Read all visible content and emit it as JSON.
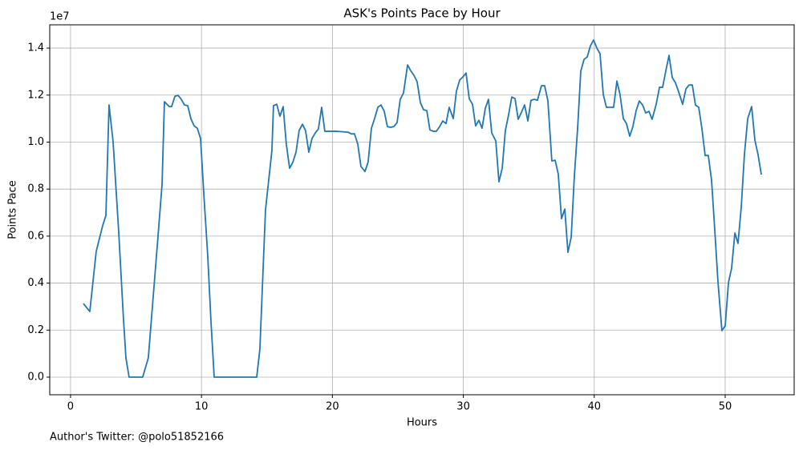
{
  "chart_data": {
    "type": "line",
    "title": "ASK's Points Pace by Hour",
    "x_label": "Hours",
    "y_label": "Points Pace",
    "y_offset_label": "1e7",
    "footnote": "Author's Twitter: @polo51852166",
    "grid": true,
    "color": "#1f77b4",
    "xlim": [
      -1.59,
      55.27
    ],
    "ylim": [
      -750000,
      14990000
    ],
    "xticks": [
      0,
      10,
      20,
      30,
      40,
      50
    ],
    "yticks": [
      {
        "value": 0,
        "label": "0.0"
      },
      {
        "value": 2000000,
        "label": "0.2"
      },
      {
        "value": 4000000,
        "label": "0.4"
      },
      {
        "value": 6000000,
        "label": "0.6"
      },
      {
        "value": 8000000,
        "label": "0.8"
      },
      {
        "value": 10000000,
        "label": "1.0"
      },
      {
        "value": 12000000,
        "label": "1.2"
      },
      {
        "value": 14000000,
        "label": "1.4"
      }
    ],
    "x": [
      0.98,
      1.47,
      1.96,
      2.45,
      2.7,
      2.82,
      2.94,
      3.25,
      3.68,
      4.04,
      4.23,
      4.47,
      5.51,
      5.94,
      6.68,
      6.99,
      7.17,
      7.54,
      7.72,
      7.97,
      8.21,
      8.46,
      8.7,
      8.95,
      9.19,
      9.44,
      9.68,
      9.93,
      10.17,
      10.48,
      10.72,
      10.97,
      14.22,
      14.46,
      14.89,
      15.38,
      15.5,
      15.75,
      15.99,
      16.24,
      16.48,
      16.73,
      16.97,
      17.22,
      17.46,
      17.71,
      17.95,
      18.2,
      18.44,
      18.69,
      18.93,
      19.18,
      19.42,
      20.34,
      21.2,
      21.45,
      21.69,
      21.94,
      22.18,
      22.49,
      22.73,
      22.98,
      23.22,
      23.47,
      23.71,
      23.96,
      24.2,
      24.45,
      24.69,
      24.94,
      25.18,
      25.43,
      25.74,
      25.98,
      26.23,
      26.47,
      26.72,
      26.96,
      27.21,
      27.45,
      27.7,
      27.94,
      28.19,
      28.43,
      28.68,
      28.92,
      29.23,
      29.47,
      29.72,
      29.96,
      30.21,
      30.45,
      30.7,
      30.94,
      31.19,
      31.43,
      31.68,
      31.92,
      32.17,
      32.48,
      32.72,
      32.97,
      33.21,
      33.46,
      33.7,
      33.95,
      34.19,
      34.44,
      34.68,
      34.93,
      35.17,
      35.42,
      35.66,
      35.97,
      36.21,
      36.46,
      36.76,
      37.01,
      37.25,
      37.5,
      37.75,
      37.99,
      38.24,
      38.48,
      38.73,
      38.97,
      39.22,
      39.46,
      39.71,
      39.95,
      40.2,
      40.44,
      40.69,
      40.93,
      41.18,
      41.48,
      41.73,
      41.97,
      42.22,
      42.46,
      42.71,
      42.95,
      43.2,
      43.44,
      43.69,
      43.93,
      44.18,
      44.42,
      44.73,
      44.98,
      45.22,
      45.47,
      45.71,
      45.96,
      46.2,
      46.45,
      46.75,
      47.0,
      47.24,
      47.49,
      47.73,
      47.98,
      48.22,
      48.47,
      48.71,
      48.96,
      49.2,
      49.45,
      49.75,
      50.0,
      50.25,
      50.49,
      50.74,
      50.98,
      51.23,
      51.47,
      51.72,
      52.02,
      52.27,
      52.51,
      52.76
    ],
    "values": [
      3130000,
      2790000,
      5350000,
      6440000,
      6880000,
      9230000,
      11580000,
      10010000,
      6160000,
      2490000,
      820000,
      0,
      0,
      820000,
      5990000,
      8210000,
      11720000,
      11510000,
      11510000,
      11950000,
      11990000,
      11820000,
      11580000,
      11550000,
      11000000,
      10690000,
      10590000,
      10150000,
      7870000,
      5140000,
      2420000,
      0,
      0,
      1190000,
      7120000,
      9640000,
      11550000,
      11610000,
      11100000,
      11510000,
      9910000,
      8890000,
      9130000,
      9570000,
      10490000,
      10760000,
      10490000,
      9570000,
      10150000,
      10390000,
      10560000,
      11480000,
      10460000,
      10460000,
      10420000,
      10350000,
      10350000,
      9910000,
      8960000,
      8750000,
      9160000,
      10590000,
      11000000,
      11480000,
      11580000,
      11310000,
      10660000,
      10630000,
      10660000,
      10830000,
      11820000,
      12090000,
      13280000,
      13040000,
      12840000,
      12570000,
      11680000,
      11380000,
      11340000,
      10520000,
      10460000,
      10460000,
      10660000,
      10900000,
      10790000,
      11480000,
      11000000,
      12160000,
      12640000,
      12770000,
      12940000,
      11850000,
      11610000,
      10690000,
      10930000,
      10590000,
      11440000,
      11820000,
      10390000,
      10050000,
      8310000,
      8890000,
      10490000,
      11170000,
      11920000,
      11850000,
      10970000,
      11270000,
      11580000,
      10900000,
      11780000,
      11820000,
      11780000,
      12400000,
      12400000,
      11750000,
      9200000,
      9230000,
      8650000,
      6740000,
      7150000,
      5310000,
      5960000,
      8550000,
      10590000,
      13010000,
      13520000,
      13620000,
      14100000,
      14340000,
      14000000,
      13760000,
      12020000,
      11480000,
      11480000,
      11480000,
      12600000,
      12020000,
      11000000,
      10790000,
      10250000,
      10660000,
      11340000,
      11750000,
      11580000,
      11240000,
      11310000,
      10970000,
      11610000,
      12330000,
      12330000,
      13040000,
      13690000,
      12740000,
      12530000,
      12130000,
      11610000,
      12260000,
      12430000,
      12430000,
      11580000,
      11480000,
      10590000,
      9430000,
      9430000,
      8380000,
      6300000,
      4050000,
      1980000,
      2180000,
      4020000,
      4630000,
      6130000,
      5690000,
      7250000,
      9470000,
      11000000,
      11510000,
      10080000,
      9470000,
      8620000
    ]
  }
}
